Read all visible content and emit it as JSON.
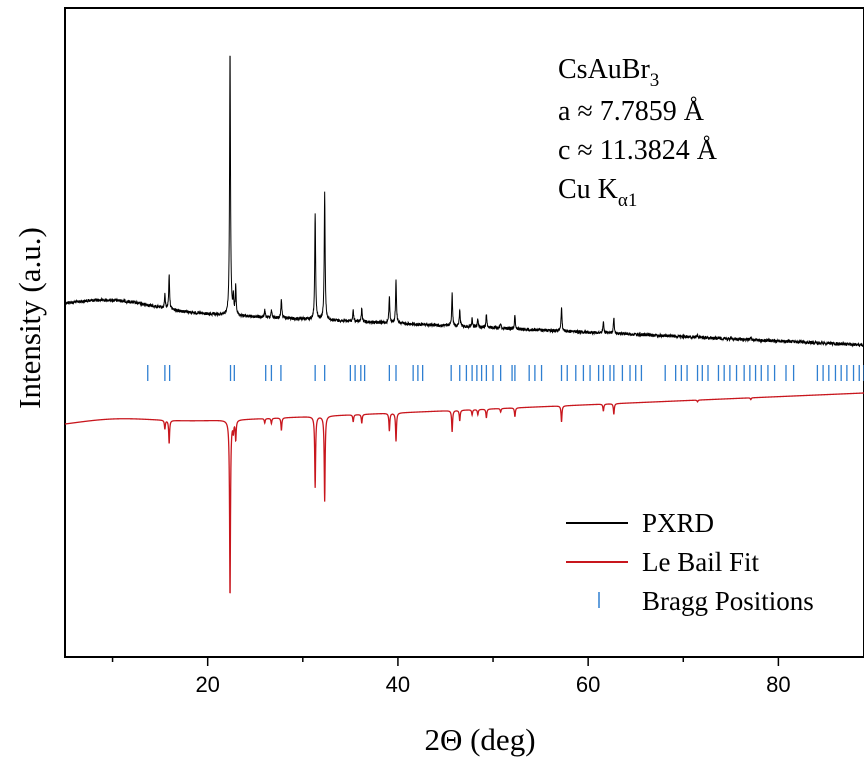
{
  "chart_data": {
    "type": "line",
    "xlabel": "2Θ (deg)",
    "ylabel": "Intensity (a.u.)",
    "xlim": [
      5,
      89
    ],
    "x_ticks": [
      20,
      40,
      60,
      80
    ],
    "y_ticks_labeled": false,
    "grid": false,
    "legend_placement": "bottom-right",
    "annotation": {
      "compound_main": "CsAuBr",
      "compound_sub": "3",
      "lattice_a": "a ≈ 7.7859 Å",
      "lattice_c": "c ≈ 11.3824 Å",
      "radiation_main": "Cu K",
      "radiation_sub": "α1"
    },
    "colors": {
      "pxrd": "#000000",
      "le_bail": "#c8161d",
      "bragg": "#2f7fd1",
      "axes": "#000000"
    },
    "peaks": [
      {
        "x": 15.5,
        "h": 0.05
      },
      {
        "x": 15.95,
        "h": 0.13
      },
      {
        "x": 22.35,
        "h": 1.0
      },
      {
        "x": 22.7,
        "h": 0.06
      },
      {
        "x": 22.95,
        "h": 0.11
      },
      {
        "x": 26.0,
        "h": 0.025
      },
      {
        "x": 26.7,
        "h": 0.03
      },
      {
        "x": 27.75,
        "h": 0.07
      },
      {
        "x": 31.3,
        "h": 0.4
      },
      {
        "x": 32.3,
        "h": 0.48
      },
      {
        "x": 35.3,
        "h": 0.04
      },
      {
        "x": 36.2,
        "h": 0.05
      },
      {
        "x": 39.1,
        "h": 0.1
      },
      {
        "x": 39.8,
        "h": 0.16
      },
      {
        "x": 45.7,
        "h": 0.12
      },
      {
        "x": 46.5,
        "h": 0.06
      },
      {
        "x": 47.8,
        "h": 0.03
      },
      {
        "x": 48.4,
        "h": 0.03
      },
      {
        "x": 49.3,
        "h": 0.05
      },
      {
        "x": 50.8,
        "h": 0.02
      },
      {
        "x": 52.3,
        "h": 0.05
      },
      {
        "x": 57.2,
        "h": 0.09
      },
      {
        "x": 61.6,
        "h": 0.04
      },
      {
        "x": 62.7,
        "h": 0.06
      },
      {
        "x": 71.5,
        "h": 0.01
      },
      {
        "x": 77.1,
        "h": 0.01
      }
    ],
    "bragg_positions": [
      13.7,
      15.5,
      16.0,
      22.4,
      22.8,
      26.1,
      26.7,
      27.7,
      31.3,
      32.3,
      35.0,
      35.5,
      36.1,
      36.5,
      39.1,
      39.8,
      41.6,
      42.1,
      42.6,
      45.6,
      46.5,
      47.2,
      47.8,
      48.3,
      48.8,
      49.3,
      50.0,
      50.8,
      52.0,
      52.3,
      53.8,
      54.4,
      55.1,
      57.2,
      57.8,
      58.7,
      59.5,
      60.2,
      61.1,
      61.6,
      62.3,
      62.7,
      63.6,
      64.4,
      65.0,
      65.6,
      68.1,
      69.2,
      69.8,
      70.4,
      71.5,
      72.0,
      72.6,
      73.7,
      74.3,
      74.9,
      75.6,
      76.4,
      77.0,
      77.6,
      78.2,
      78.9,
      79.6,
      80.8,
      81.6,
      84.1,
      84.7,
      85.3,
      86.0,
      86.6,
      87.2,
      87.9,
      88.5,
      89.0
    ],
    "series": [
      {
        "name": "PXRD"
      },
      {
        "name": "Le Bail Fit"
      },
      {
        "name": "Bragg Positions"
      }
    ]
  }
}
